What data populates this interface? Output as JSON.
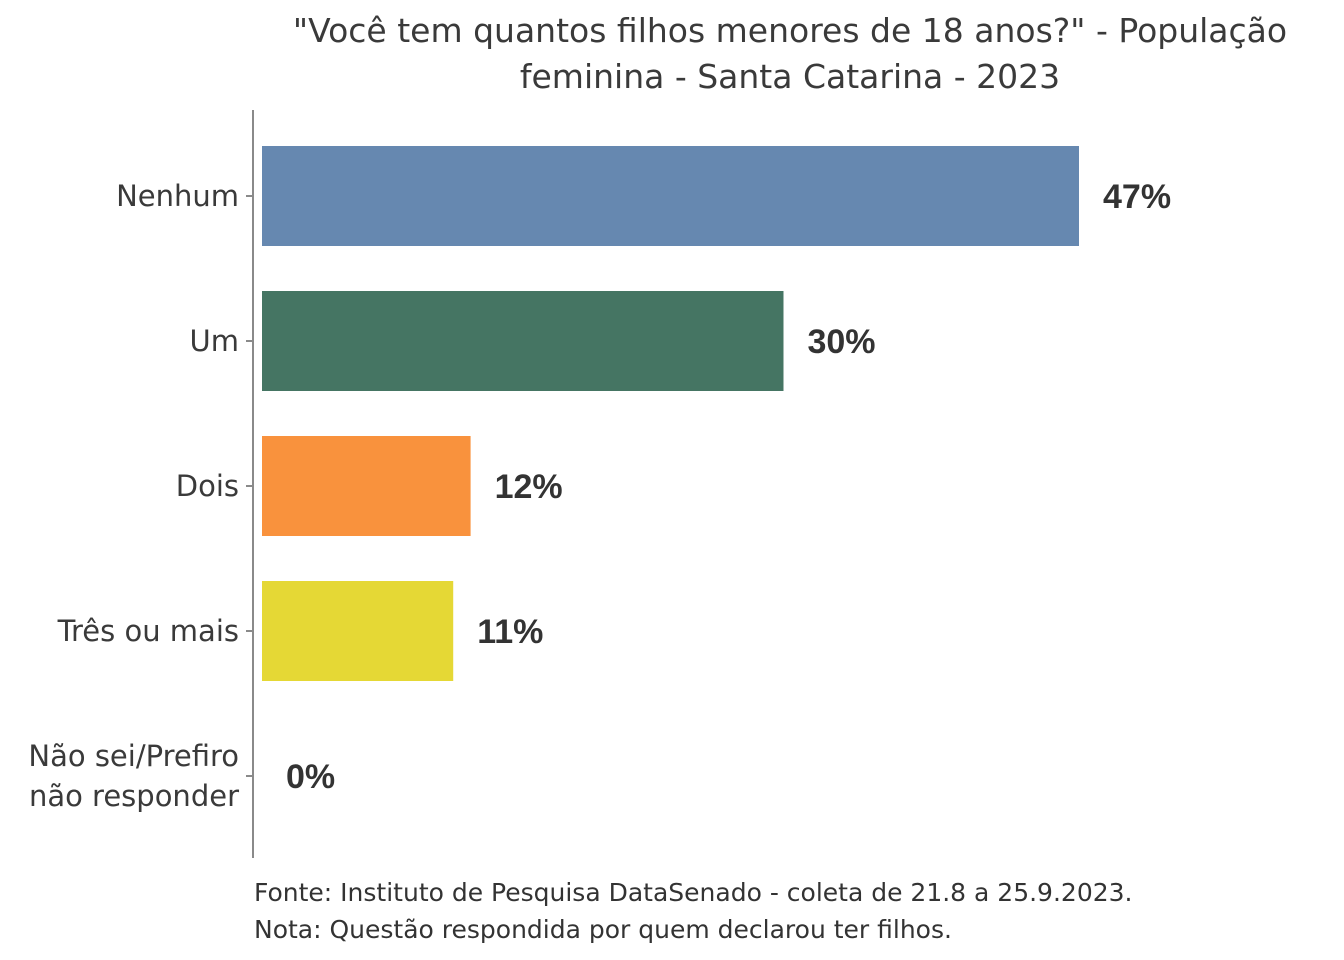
{
  "chart_data": {
    "type": "bar",
    "orientation": "horizontal",
    "title_lines": [
      "\"Você tem quantos filhos menores de 18 anos?\" - População",
      "feminina - Santa Catarina - 2023"
    ],
    "categories": [
      [
        "Nenhum"
      ],
      [
        "Um"
      ],
      [
        "Dois"
      ],
      [
        "Três ou mais"
      ],
      [
        "Não sei/Prefiro",
        "não responder"
      ]
    ],
    "values": [
      47,
      30,
      12,
      11,
      0
    ],
    "value_labels": [
      "47%",
      "30%",
      "12%",
      "11%",
      "0%"
    ],
    "colors": [
      "#6688b0",
      "#457563",
      "#f9923d",
      "#e5d835",
      "#ffffff"
    ],
    "xlim": [
      0,
      50
    ],
    "grid": false,
    "legend": "none"
  },
  "footer": {
    "source": "Fonte: Instituto de Pesquisa DataSenado - coleta de 21.8 a 25.9.2023.",
    "note": "Nota: Questão respondida por quem declarou ter filhos."
  }
}
